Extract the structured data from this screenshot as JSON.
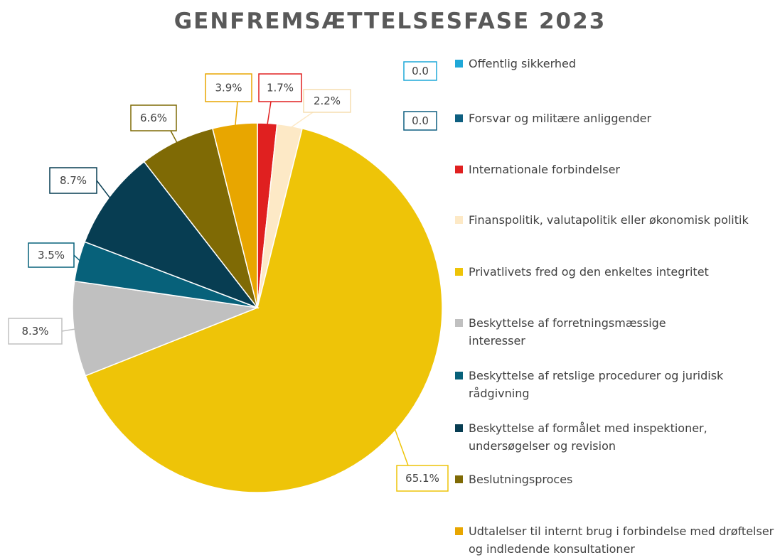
{
  "chart_data": {
    "type": "pie",
    "title": "GENFREMSÆTTELSESFASE 2023",
    "legend_position": "right",
    "series": [
      {
        "name": "",
        "slices": [
          {
            "label": "Offentlig sikkerhed",
            "value": 0.0,
            "display": "0.0",
            "color": "#1FA8D8"
          },
          {
            "label": "Forsvar og militære anliggender",
            "value": 0.0,
            "display": "0.0",
            "color": "#0E5F80"
          },
          {
            "label": "Internationale forbindelser",
            "value": 1.7,
            "display": "1.7%",
            "color": "#E02020"
          },
          {
            "label": "Finanspolitik, valutapolitik eller økonomisk politik",
            "value": 2.2,
            "display": "2.2%",
            "color": "#FDE9C6"
          },
          {
            "label": "Privatlivets fred og den enkeltes integritet",
            "value": 65.1,
            "display": "65.1%",
            "color": "#EEC408"
          },
          {
            "label": "Beskyttelse af forretningsmæssige interesser",
            "value": 8.3,
            "display": "8.3%",
            "color": "#C0C0C0"
          },
          {
            "label": "Beskyttelse af retslige procedurer og juridisk rådgivning",
            "value": 3.5,
            "display": "3.5%",
            "color": "#07617A"
          },
          {
            "label": "Beskyttelse af formålet med inspektioner, undersøgelser og revision",
            "value": 8.7,
            "display": "8.7%",
            "color": "#073D52"
          },
          {
            "label": "Beslutningsproces",
            "value": 6.6,
            "display": "6.6%",
            "color": "#7F6A05"
          },
          {
            "label": "Udtalelser til internt brug i forbindelse med drøftelser og indledende konsultationer",
            "value": 3.9,
            "display": "3.9%",
            "color": "#E8A600"
          }
        ]
      }
    ]
  }
}
